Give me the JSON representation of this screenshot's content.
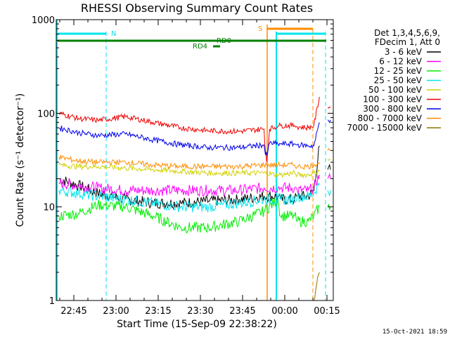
{
  "colors": {
    "black": "#000000",
    "magenta": "#ff00ff",
    "green": "#00ee00",
    "cyan": "#00e5ee",
    "yellow": "#d2d200",
    "red": "#ee0000",
    "blue": "#0000ee",
    "orange": "#ff8c00",
    "olive": "#8b7500",
    "dark_green": "#008000"
  },
  "chart_data": {
    "type": "line",
    "title": "RHESSI Observing Summary Count Rates",
    "xlabel": "Start Time (15-Sep-09 22:38:22)",
    "ylabel": "Count Rate (s⁻¹ detector⁻¹)",
    "yscale": "log",
    "ylim": [
      1,
      1000
    ],
    "xlim_minutes": [
      0,
      100
    ],
    "ytick_labels": [
      "1",
      "10",
      "100",
      "1000"
    ],
    "xtick_labels": [
      "22:45",
      "23:00",
      "23:15",
      "23:30",
      "23:45",
      "00:00",
      "00:15"
    ],
    "footer": "15-Oct-2021 18:59",
    "legend_header": [
      "Det 1,3,4,5,6,9,",
      "FDecim 1, Att 0"
    ],
    "gap_minutes": [
      0,
      100
    ],
    "series": [
      {
        "name": "3 - 6 keV",
        "color": "#000000",
        "x": [
          1,
          8,
          15,
          25,
          35,
          45,
          55,
          66,
          75,
          80,
          81,
          86,
          87,
          91,
          93,
          95,
          96,
          97,
          98,
          99
        ],
        "y": [
          20,
          17,
          14,
          12,
          11,
          11,
          11.5,
          12,
          13,
          13,
          12,
          12,
          13,
          13,
          15,
          45,
          null,
          null,
          25,
          25
        ]
      },
      {
        "name": "6 - 12 keV",
        "color": "#ff00ff",
        "x": [
          1,
          8,
          15,
          25,
          35,
          45,
          55,
          66,
          75,
          80,
          81,
          86,
          87,
          91,
          93,
          95,
          96,
          97,
          98,
          99
        ],
        "y": [
          18,
          17,
          16,
          15,
          15,
          15,
          15,
          15,
          16,
          16,
          16,
          16,
          15,
          15,
          16,
          22,
          null,
          null,
          20,
          20
        ]
      },
      {
        "name": "12 - 25 keV",
        "color": "#00ee00",
        "x": [
          1,
          8,
          15,
          25,
          35,
          45,
          55,
          66,
          75,
          80,
          81,
          86,
          87,
          91,
          93,
          95,
          96,
          97,
          98,
          99
        ],
        "y": [
          8,
          8.5,
          10.5,
          10,
          8,
          6,
          6,
          7,
          9,
          12,
          8,
          8,
          7,
          7,
          8,
          10,
          null,
          null,
          10,
          10
        ]
      },
      {
        "name": "25 - 50 keV",
        "color": "#00e5ee",
        "x": [
          1,
          8,
          15,
          25,
          35,
          45,
          55,
          66,
          75,
          80,
          81,
          86,
          87,
          91,
          93,
          95,
          96,
          97,
          98,
          99
        ],
        "y": [
          15,
          14,
          13,
          12,
          11,
          10,
          10,
          11,
          12,
          12,
          12,
          12,
          13,
          13,
          14,
          18,
          null,
          null,
          15,
          15
        ]
      },
      {
        "name": "50 - 100 keV",
        "color": "#d2d200",
        "x": [
          1,
          8,
          15,
          25,
          35,
          45,
          55,
          66,
          75,
          80,
          81,
          86,
          87,
          91,
          93,
          95,
          96,
          97,
          98,
          99
        ],
        "y": [
          28,
          27,
          27,
          26,
          25,
          24,
          23,
          23,
          23,
          22,
          22,
          23,
          22,
          22,
          23,
          24,
          null,
          null,
          32,
          32
        ]
      },
      {
        "name": "100 - 300 keV",
        "color": "#ee0000",
        "x": [
          1,
          8,
          15,
          25,
          35,
          45,
          55,
          66,
          75,
          75.5,
          76,
          77,
          80,
          81,
          86,
          87,
          91,
          93,
          95,
          96,
          97,
          98,
          99
        ],
        "y": [
          100,
          88,
          84,
          92,
          80,
          70,
          65,
          64,
          68,
          40,
          30,
          68,
          73,
          74,
          74,
          72,
          70,
          74,
          150,
          null,
          null,
          115,
          115
        ]
      },
      {
        "name": "300 - 800 keV",
        "color": "#0000ee",
        "x": [
          1,
          8,
          15,
          25,
          35,
          45,
          55,
          66,
          75,
          75.5,
          76,
          77,
          80,
          81,
          86,
          87,
          91,
          93,
          95,
          96,
          97,
          98,
          99
        ],
        "y": [
          70,
          62,
          58,
          60,
          52,
          46,
          43,
          43,
          46,
          36,
          36,
          48,
          47,
          47,
          47,
          46,
          45,
          45,
          80,
          null,
          null,
          85,
          85
        ]
      },
      {
        "name": "800 - 7000 keV",
        "color": "#ff8c00",
        "x": [
          1,
          8,
          15,
          25,
          35,
          45,
          55,
          66,
          75,
          80,
          81,
          86,
          87,
          91,
          93,
          95,
          96,
          97,
          98,
          99
        ],
        "y": [
          34,
          31,
          30,
          30,
          28,
          27,
          27,
          27,
          28,
          28,
          28,
          28,
          27,
          27,
          28,
          30,
          null,
          null,
          40,
          40
        ]
      },
      {
        "name": "7000 - 15000 keV",
        "color": "#8b7500",
        "x": [
          93,
          94,
          95
        ],
        "y": [
          1,
          1.5,
          2
        ]
      }
    ],
    "annotations": {
      "saa_label": "S",
      "night_label": "N",
      "rd_labels": [
        "RD0",
        "RD4"
      ]
    }
  }
}
